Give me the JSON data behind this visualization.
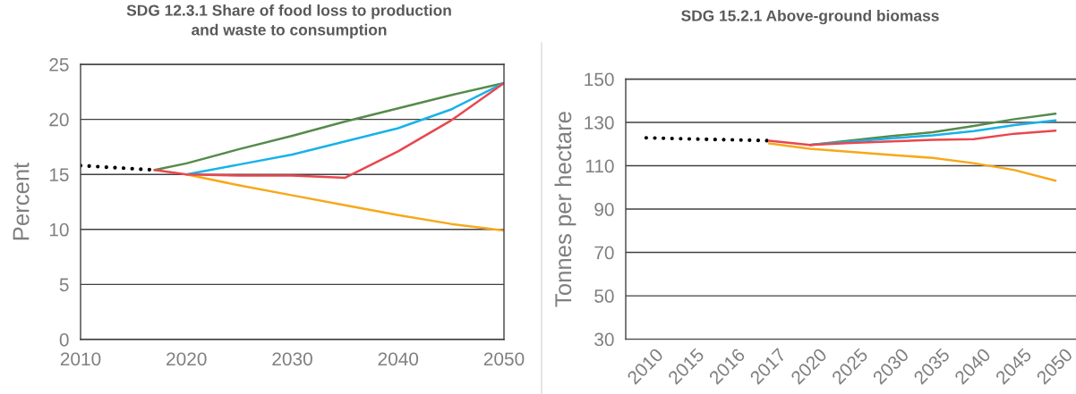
{
  "chart_data": [
    {
      "type": "line",
      "title": "SDG 12.3.1 Share of food loss to production and waste to consumption",
      "ylabel": "Percent",
      "xlim": [
        2010,
        2050
      ],
      "xticks": [
        2010,
        2020,
        2030,
        2040,
        2050
      ],
      "ylim": [
        0,
        25
      ],
      "yticks": [
        0,
        5,
        10,
        15,
        20,
        25
      ],
      "grid": "y",
      "series": [
        {
          "color": "#000000",
          "line_style": "dotted",
          "x": [
            2010,
            2017
          ],
          "values": [
            15.8,
            15.4
          ]
        },
        {
          "color": "#548b4a",
          "x": [
            2017,
            2020,
            2025,
            2030,
            2035,
            2040,
            2045,
            2050
          ],
          "values": [
            15.4,
            16.0,
            17.3,
            18.5,
            19.8,
            21.0,
            22.2,
            23.3
          ]
        },
        {
          "color": "#18b2e8",
          "x": [
            2020,
            2025,
            2030,
            2035,
            2040,
            2045,
            2050
          ],
          "values": [
            15.0,
            15.9,
            16.8,
            18.0,
            19.2,
            20.9,
            23.3
          ]
        },
        {
          "color": "#f7a81b",
          "x": [
            2020,
            2025,
            2030,
            2035,
            2040,
            2045,
            2050
          ],
          "values": [
            15.0,
            14.0,
            13.1,
            12.2,
            11.3,
            10.5,
            9.9
          ]
        },
        {
          "color": "#e8474f",
          "x": [
            2017,
            2020,
            2025,
            2030,
            2035,
            2040,
            2045,
            2050
          ],
          "values": [
            15.4,
            15.0,
            14.9,
            14.9,
            14.7,
            17.1,
            19.9,
            23.3
          ]
        }
      ]
    },
    {
      "type": "line",
      "title": "SDG 15.2.1 Above-ground biomass",
      "ylabel": "Tonnes per hectare",
      "categories": [
        "2010",
        "2015",
        "2016",
        "2017",
        "2020",
        "2025",
        "2030",
        "2035",
        "2040",
        "2045",
        "2050"
      ],
      "ylim": [
        30,
        150
      ],
      "yticks": [
        30,
        50,
        70,
        90,
        110,
        130,
        150
      ],
      "grid": "y",
      "series": [
        {
          "color": "#000000",
          "line_style": "dotted",
          "values": [
            122.9,
            122.4,
            122.0,
            121.6,
            null,
            null,
            null,
            null,
            null,
            null,
            null
          ]
        },
        {
          "color": "#548b4a",
          "values": [
            null,
            null,
            null,
            null,
            119.6,
            121.7,
            123.7,
            125.5,
            128.4,
            131.5,
            134.0
          ]
        },
        {
          "color": "#18b2e8",
          "values": [
            null,
            null,
            null,
            null,
            119.6,
            121.1,
            122.7,
            124.0,
            126.0,
            128.8,
            130.9
          ]
        },
        {
          "color": "#f7a81b",
          "values": [
            null,
            null,
            null,
            120.3,
            117.8,
            116.4,
            115.0,
            113.6,
            111.2,
            108.0,
            103.1
          ]
        },
        {
          "color": "#e8474f",
          "values": [
            null,
            null,
            null,
            121.6,
            119.6,
            120.5,
            121.2,
            122.0,
            122.3,
            124.8,
            126.2
          ]
        }
      ]
    }
  ]
}
